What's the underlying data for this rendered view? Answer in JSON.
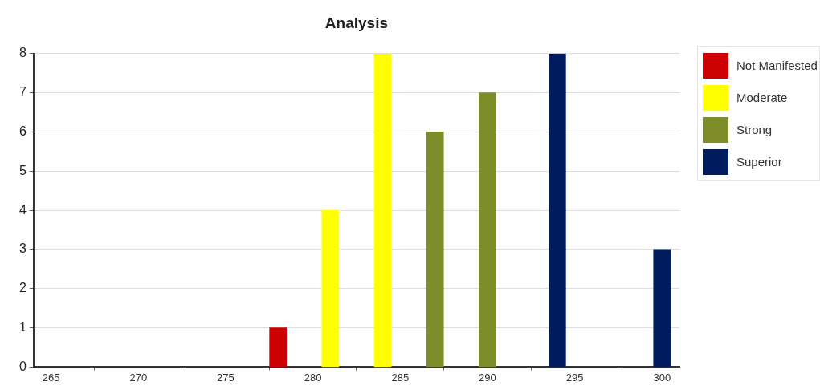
{
  "chart_data": {
    "type": "bar",
    "title": "Analysis",
    "series": [
      {
        "name": "Not Manifested",
        "color": "#cc0000",
        "x": [
          278
        ],
        "values": [
          1
        ]
      },
      {
        "name": "Moderate",
        "color": "#ffff00",
        "x": [
          281,
          284
        ],
        "values": [
          4,
          8
        ]
      },
      {
        "name": "Strong",
        "color": "#7f8c2a",
        "x": [
          287,
          290
        ],
        "values": [
          6,
          7
        ]
      },
      {
        "name": "Superior",
        "color": "#001c5e",
        "x": [
          294,
          300
        ],
        "values": [
          8,
          3
        ]
      }
    ],
    "xlim": [
      264,
      301
    ],
    "xticks": [
      265,
      270,
      275,
      280,
      285,
      290,
      295,
      300
    ],
    "ylim": [
      0,
      8
    ],
    "yticks": [
      0,
      1,
      2,
      3,
      4,
      5,
      6,
      7,
      8
    ],
    "grid": "y",
    "legend": "top right"
  }
}
